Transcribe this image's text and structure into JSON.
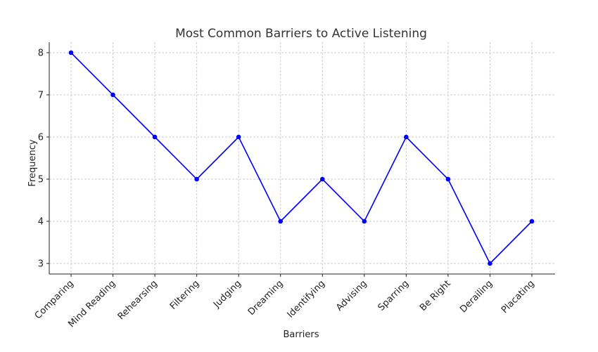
{
  "chart_data": {
    "type": "line",
    "title": "Most Common Barriers to Active Listening",
    "xlabel": "Barriers",
    "ylabel": "Frequency",
    "categories": [
      "Comparing",
      "Mind Reading",
      "Rehearsing",
      "Filtering",
      "Judging",
      "Dreaming",
      "Identifying",
      "Advising",
      "Sparring",
      "Be Right",
      "Derailing",
      "Placating"
    ],
    "series": [
      {
        "values": [
          8,
          7,
          6,
          5,
          6,
          4,
          5,
          4,
          6,
          5,
          3,
          4
        ],
        "color": "#0000ff"
      }
    ],
    "yticks": [
      3,
      4,
      5,
      6,
      7,
      8
    ],
    "ylim": [
      2.75,
      8.25
    ],
    "grid": true,
    "x_tick_rotation": 45
  }
}
